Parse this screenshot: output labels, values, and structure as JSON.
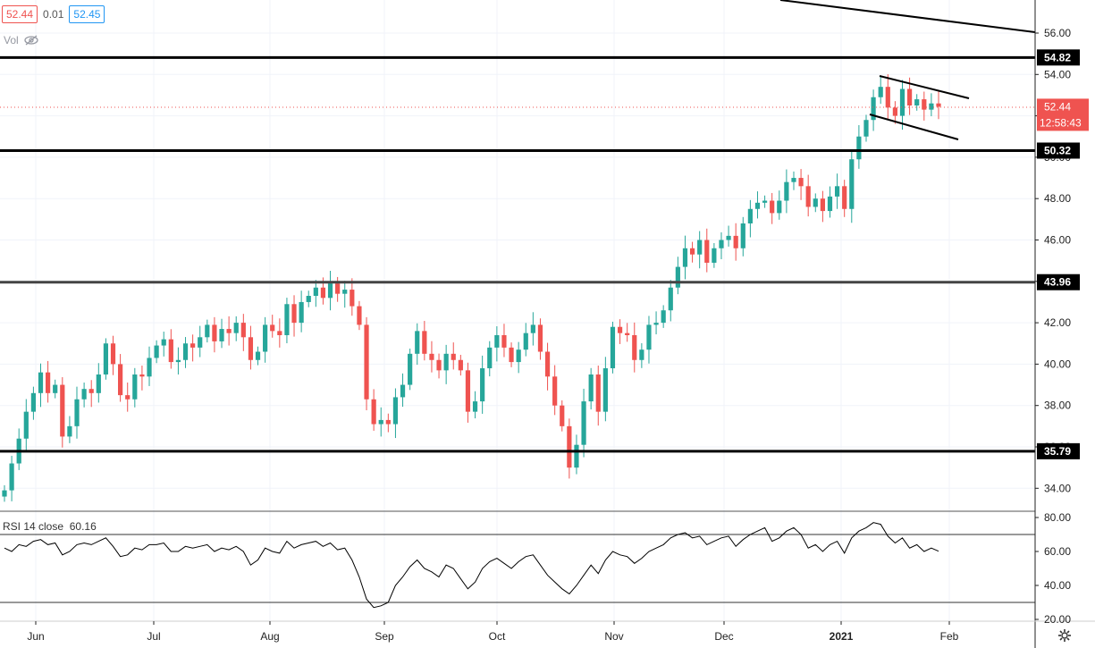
{
  "header": {
    "bid": "52.44",
    "spread": "0.01",
    "ask": "52.45",
    "volume_label": "Vol"
  },
  "rsi": {
    "label": "RSI 14 close",
    "value": "60.16",
    "ticks": [
      "80.00",
      "60.00",
      "40.00",
      "20.00"
    ],
    "levels": [
      70,
      30
    ]
  },
  "price_labels": {
    "last_price": "52.44",
    "countdown": "12:58:43"
  },
  "colors": {
    "up": "#26a69a",
    "down": "#ef5350",
    "line": "#000000",
    "grid": "#f0f3fa",
    "label_bg": "#000000",
    "price_label_bg": "#ef5350"
  },
  "chart_data": {
    "type": "candlestick",
    "y_axis_ticks": [
      "56.00",
      "54.00",
      "52.00",
      "50.00",
      "48.00",
      "46.00",
      "44.00",
      "42.00",
      "40.00",
      "38.00",
      "36.00",
      "34.00"
    ],
    "x_axis_ticks": [
      "Jun",
      "Jul",
      "Aug",
      "Sep",
      "Oct",
      "Nov",
      "Dec",
      "2021",
      "Feb"
    ],
    "ylim": [
      33.0,
      57.5
    ],
    "horizontal_levels": [
      {
        "label": "54.82",
        "value": 54.82
      },
      {
        "label": "50.32",
        "value": 50.32
      },
      {
        "label": "43.96",
        "value": 43.96
      },
      {
        "label": "35.79",
        "value": 35.79
      }
    ],
    "last_price": 52.44,
    "series_close": [
      33.9,
      35.2,
      36.4,
      37.7,
      38.6,
      39.6,
      38.6,
      39.0,
      36.5,
      37.0,
      38.3,
      38.8,
      38.6,
      39.5,
      41.0,
      40.0,
      38.5,
      38.3,
      39.5,
      39.4,
      40.3,
      40.9,
      41.2,
      40.1,
      40.2,
      41.0,
      40.8,
      41.3,
      41.9,
      41.1,
      41.7,
      41.5,
      42.0,
      41.3,
      40.2,
      40.6,
      41.9,
      41.6,
      41.4,
      42.9,
      42.0,
      43.0,
      43.3,
      43.7,
      43.2,
      43.9,
      43.4,
      43.6,
      42.8,
      41.9,
      38.3,
      37.1,
      37.3,
      37.1,
      38.4,
      39.0,
      40.5,
      41.6,
      40.5,
      40.2,
      39.7,
      40.5,
      40.2,
      39.7,
      37.7,
      38.2,
      39.8,
      40.8,
      41.4,
      40.8,
      40.1,
      40.7,
      41.5,
      41.9,
      40.6,
      39.4,
      38.0,
      37.0,
      35.0,
      36.1,
      38.2,
      39.5,
      37.7,
      39.8,
      41.8,
      41.5,
      41.4,
      40.2,
      40.7,
      41.9,
      42.0,
      42.6,
      43.7,
      44.7,
      45.6,
      45.3,
      46.0,
      44.9,
      45.6,
      46.0,
      46.2,
      45.6,
      46.8,
      47.5,
      47.8,
      47.9,
      47.3,
      47.9,
      48.8,
      49.0,
      48.6,
      47.6,
      48.0,
      47.4,
      48.1,
      48.6,
      47.5,
      49.9,
      51.0,
      51.8,
      52.9,
      53.4,
      52.4,
      52.0,
      53.3,
      52.5,
      52.8,
      52.3,
      52.6,
      52.44
    ],
    "rsi_series": [
      62,
      60,
      64,
      63,
      66,
      67,
      64,
      65,
      58,
      60,
      64,
      65,
      64,
      66,
      68,
      63,
      57,
      58,
      62,
      61,
      64,
      64,
      65,
      60,
      60,
      63,
      62,
      63,
      64,
      60,
      62,
      61,
      63,
      60,
      52,
      55,
      62,
      60,
      59,
      66,
      62,
      64,
      65,
      66,
      63,
      65,
      61,
      62,
      55,
      45,
      32,
      27,
      28,
      30,
      40,
      45,
      51,
      55,
      50,
      48,
      45,
      52,
      50,
      44,
      38,
      42,
      50,
      54,
      56,
      53,
      50,
      54,
      57,
      58,
      52,
      46,
      42,
      38,
      35,
      40,
      46,
      52,
      47,
      55,
      60,
      58,
      57,
      53,
      56,
      60,
      62,
      64,
      68,
      70,
      71,
      68,
      69,
      64,
      66,
      68,
      69,
      63,
      67,
      70,
      72,
      74,
      66,
      68,
      72,
      74,
      70,
      62,
      64,
      60,
      64,
      66,
      59,
      68,
      72,
      74,
      77,
      76,
      69,
      65,
      68,
      62,
      64,
      60,
      62,
      60.16
    ]
  }
}
